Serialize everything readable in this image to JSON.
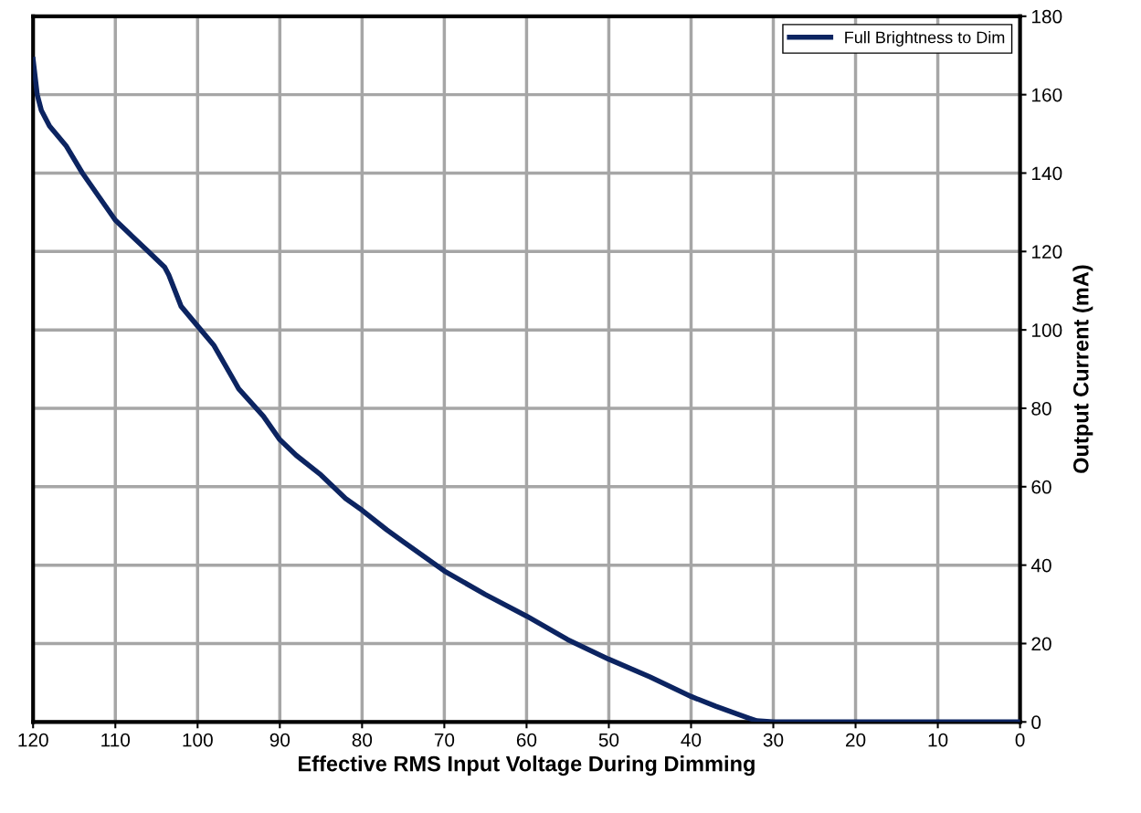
{
  "chart_data": {
    "type": "line",
    "xlabel": "Effective RMS Input Voltage During Dimming",
    "ylabel": "Output Current (mA)",
    "x": [
      120,
      119.5,
      119,
      118,
      116,
      114,
      112,
      110,
      108,
      106,
      104,
      103.5,
      102,
      100,
      98,
      95,
      92,
      90,
      88,
      85,
      82,
      80,
      77,
      75,
      70,
      65,
      60,
      55,
      50,
      45,
      40,
      37,
      35,
      33,
      32,
      30,
      20,
      10,
      0
    ],
    "series": [
      {
        "name": "Full Brightness to Dim",
        "color": "#0c2461",
        "values": [
          169,
          160,
          156,
          152,
          147,
          140,
          134,
          128,
          124,
          120,
          116,
          114,
          106,
          101,
          96,
          85,
          78,
          72,
          68,
          63,
          57,
          54,
          49,
          46,
          38.5,
          32.5,
          27,
          21,
          16,
          11.5,
          6.5,
          4,
          2.5,
          1,
          0.3,
          0,
          0,
          0,
          0
        ]
      }
    ],
    "xlim": [
      120,
      0
    ],
    "xticks": [
      120,
      110,
      100,
      90,
      80,
      70,
      60,
      50,
      40,
      30,
      20,
      10,
      0
    ],
    "ylim": [
      0,
      180
    ],
    "yticks": [
      0,
      20,
      40,
      60,
      80,
      100,
      120,
      140,
      160,
      180
    ],
    "grid": true,
    "legend": "top right",
    "marker": "none",
    "line_style": "solid"
  }
}
